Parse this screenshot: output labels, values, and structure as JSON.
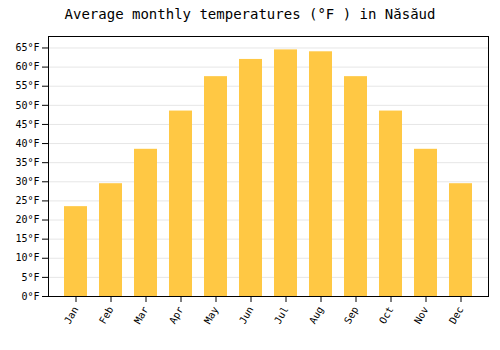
{
  "chart_data": {
    "type": "bar",
    "title": "Average monthly temperatures (°F ) in Năsăud",
    "categories": [
      "Jan",
      "Feb",
      "Mar",
      "Apr",
      "May",
      "Jun",
      "Jul",
      "Aug",
      "Sep",
      "Oct",
      "Nov",
      "Dec"
    ],
    "values": [
      23.5,
      29.5,
      38.5,
      48.5,
      57.5,
      62.0,
      64.5,
      64.0,
      57.5,
      48.5,
      38.5,
      29.5
    ],
    "color": "#FFC844",
    "ylim": [
      0,
      68
    ],
    "yticks": [
      {
        "value": 0,
        "label": "0°F"
      },
      {
        "value": 5,
        "label": "5°F"
      },
      {
        "value": 10,
        "label": "10°F"
      },
      {
        "value": 15,
        "label": "15°F"
      },
      {
        "value": 20,
        "label": "20°F"
      },
      {
        "value": 25,
        "label": "25°F"
      },
      {
        "value": 30,
        "label": "30°F"
      },
      {
        "value": 35,
        "label": "35°F"
      },
      {
        "value": 40,
        "label": "40°F"
      },
      {
        "value": 45,
        "label": "45°F"
      },
      {
        "value": 50,
        "label": "50°F"
      },
      {
        "value": 55,
        "label": "55°F"
      },
      {
        "value": 60,
        "label": "60°F"
      },
      {
        "value": 65,
        "label": "65°F"
      }
    ],
    "grid": true
  }
}
